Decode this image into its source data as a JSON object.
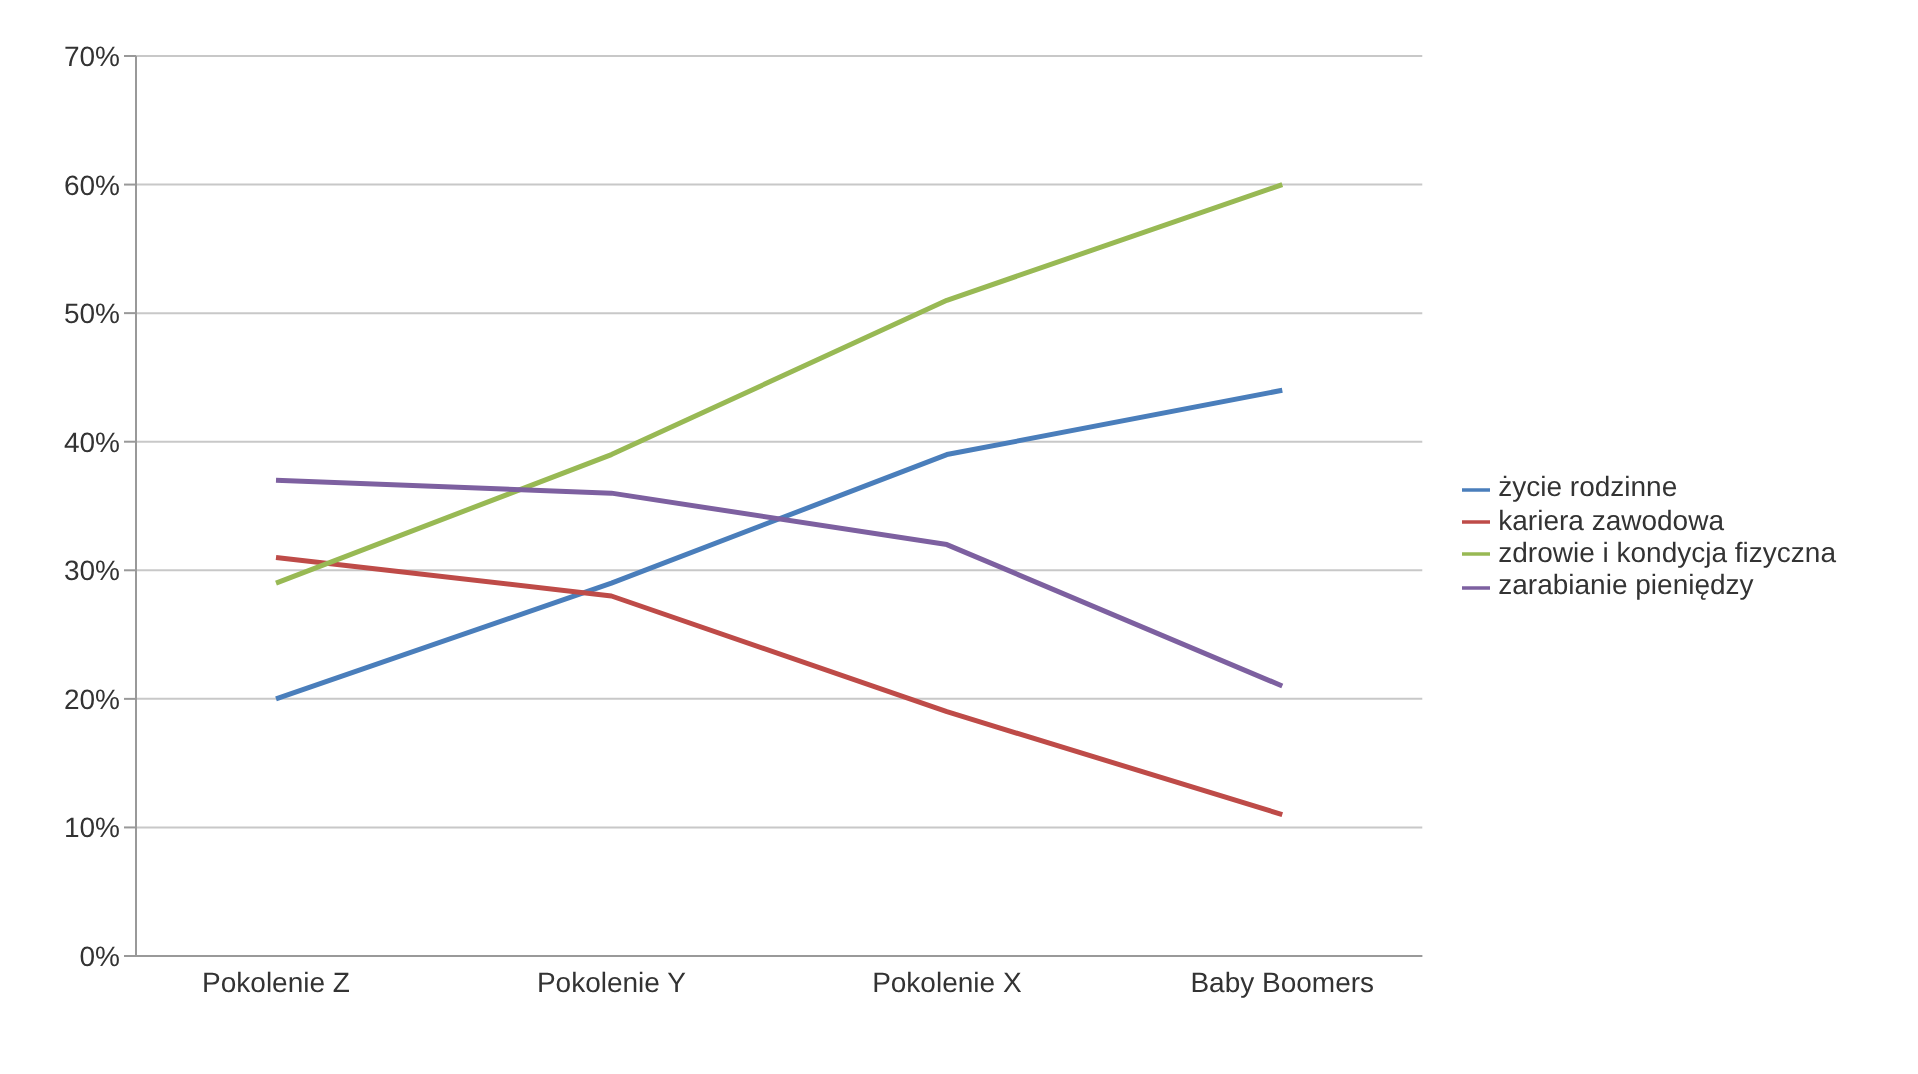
{
  "chart_data": {
    "type": "line",
    "categories": [
      "Pokolenie Z",
      "Pokolenie Y",
      "Pokolenie X",
      "Baby Boomers"
    ],
    "series": [
      {
        "name": "życie rodzinne",
        "color": "#4a7ebb",
        "values": [
          20,
          29,
          39,
          44
        ]
      },
      {
        "name": "kariera zawodowa",
        "color": "#be4b48",
        "values": [
          31,
          28,
          19,
          11
        ]
      },
      {
        "name": "zdrowie i kondycja fizyczna",
        "color": "#98b954",
        "values": [
          29,
          39,
          51,
          60
        ]
      },
      {
        "name": "zarabianie pieniędzy",
        "color": "#7d60a0",
        "values": [
          37,
          36,
          32,
          21
        ]
      }
    ],
    "ylim": [
      0,
      70
    ],
    "yticks": [
      {
        "value": 0,
        "label": "0%"
      },
      {
        "value": 10,
        "label": "10%"
      },
      {
        "value": 20,
        "label": "20%"
      },
      {
        "value": 30,
        "label": "30%"
      },
      {
        "value": 40,
        "label": "40%"
      },
      {
        "value": 50,
        "label": "50%"
      },
      {
        "value": 60,
        "label": "60%"
      },
      {
        "value": 70,
        "label": "70%"
      }
    ],
    "grid": "y",
    "legend": "right",
    "marker": "none",
    "line_style": "solid"
  }
}
